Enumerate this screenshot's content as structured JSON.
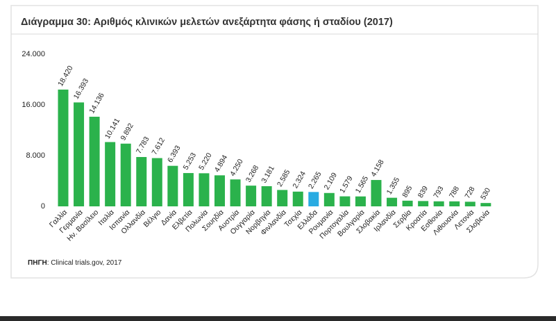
{
  "chart_data": {
    "type": "bar",
    "title": "Διάγραμμα 30: Αριθμός κλινικών μελετών ανεξάρτητα φάσης ή σταδίου (2017)",
    "categories": [
      "Γαλλία",
      "Γερμανία",
      "Ην. Βασίλειο",
      "Ιταλία",
      "Ισπανία",
      "Ολλανδία",
      "Βέλγιο",
      "Δανία",
      "Ελβετία",
      "Πολωνία",
      "Σουηδία",
      "Αυστρία",
      "Ουγγαρία",
      "Νορβηγία",
      "Φινλανδία",
      "Τσεχία",
      "Ελλάδα",
      "Ρουμανία",
      "Πορτογαλία",
      "Βουλγαρία",
      "Σλοβακία",
      "Ιρλανδία",
      "Σερβία",
      "Κροατία",
      "Εσθονία",
      "Λιθουανία",
      "Λετονία",
      "Σλοβενία"
    ],
    "values": [
      18420,
      16393,
      14136,
      10141,
      9892,
      7783,
      7612,
      6393,
      5253,
      5220,
      4894,
      4250,
      3268,
      3181,
      2585,
      2324,
      2265,
      2109,
      1579,
      1565,
      4158,
      1355,
      895,
      839,
      793,
      788,
      728,
      530
    ],
    "value_labels": [
      "18.420",
      "16.393",
      "14.136",
      "10.141",
      "9.892",
      "7.783",
      "7.612",
      "6.393",
      "5.253",
      "5.220",
      "4.894",
      "4.250",
      "3.268",
      "3.181",
      "2.585",
      "2.324",
      "2.265",
      "2.109",
      "1.579",
      "1.565",
      "4.158",
      "1.355",
      "895",
      "839",
      "793",
      "788",
      "728",
      "530"
    ],
    "color": "#2bb24c",
    "highlight_category": "Ελλάδα",
    "highlight_color": "#29abe2",
    "ylim": [
      0,
      24000
    ],
    "yticks": [
      0,
      {
        "value": 8000,
        "label": "8.000"
      },
      {
        "value": 16000,
        "label": "16.000"
      },
      {
        "value": 24000,
        "label": "24.000"
      }
    ],
    "grid": false,
    "source_label": "ΠΗΓΗ",
    "source_text": ": Clinical trials.gov, 2017"
  }
}
